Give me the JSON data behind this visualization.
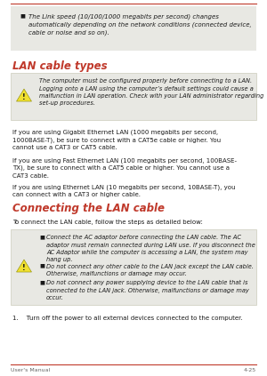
{
  "page_bg": "#ffffff",
  "red_color": "#c0392b",
  "text_color": "#1a1a1a",
  "gray_box_color": "#e8e8e3",
  "gray_box_border": "#ccccbb",
  "footer_line_color": "#c0392b",
  "footer_text_color": "#666666",
  "top_line_color": "#c0392b",
  "top_bullet_text": "The Link speed (10/100/1000 megabits per second) changes\nautomatically depending on the network conditions (connected device,\ncable or noise and so on).",
  "section1_title": "LAN cable types",
  "warning1_text": "The computer must be configured properly before connecting to a LAN.\nLogging onto a LAN using the computer’s default settings could cause a\nmalfunction in LAN operation. Check with your LAN administrator regarding\nset-up procedures.",
  "para1": "If you are using Gigabit Ethernet LAN (1000 megabits per second,\n1000BASE-T), be sure to connect with a CAT5e cable or higher. You\ncannot use a CAT3 or CAT5 cable.",
  "para2": "If you are using Fast Ethernet LAN (100 megabits per second, 100BASE-\nTX), be sure to connect with a CAT5 cable or higher. You cannot use a\nCAT3 cable.",
  "para3": "If you are using Ethernet LAN (10 megabits per second, 10BASE-T), you\ncan connect with a CAT3 or higher cable.",
  "section2_title": "Connecting the LAN cable",
  "connect_intro": "To connect the LAN cable, follow the steps as detailed below:",
  "warning2_bullets": [
    "Connect the AC adaptor before connecting the LAN cable. The AC\nadaptor must remain connected during LAN use. If you disconnect the\nAC Adaptor while the computer is accessing a LAN, the system may\nhang up.",
    "Do not connect any other cable to the LAN jack except the LAN cable.\nOtherwise, malfunctions or damage may occur.",
    "Do not connect any power supplying device to the LAN cable that is\nconnected to the LAN jack. Otherwise, malfunctions or damage may\noccur."
  ],
  "step1": "1.    Turn off the power to all external devices connected to the computer.",
  "footer_left": "User's Manual",
  "footer_right": "4-25"
}
